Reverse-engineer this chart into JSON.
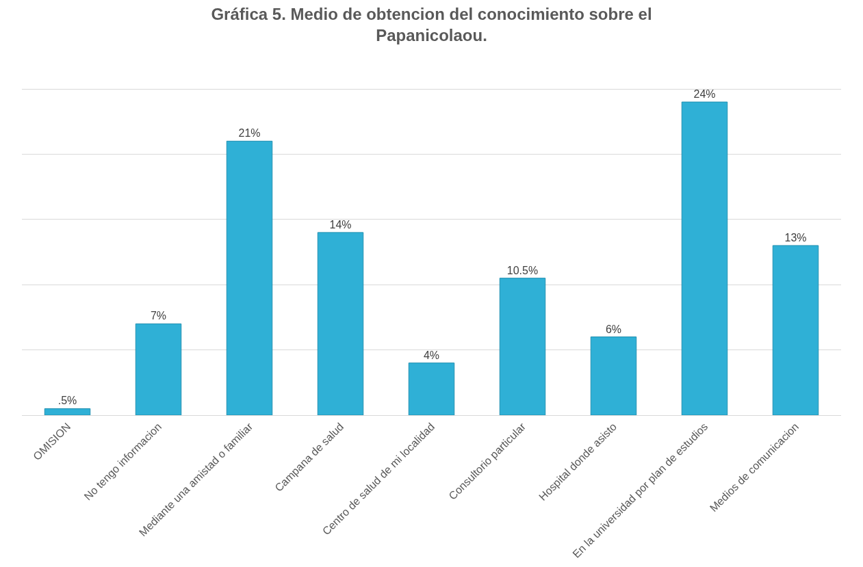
{
  "chart_data": {
    "type": "bar",
    "title": "Gráfica 5. Medio de obtencion del conocimiento sobre el Papanicolaou.",
    "categories": [
      "OMISION",
      "No tengo informacion",
      "Mediante una amistad o familiar",
      "Campana de salud",
      "Centro de salud de mi localidad",
      "Consultorio particular",
      "Hospital donde asisto",
      "En la universidad por plan de estudios",
      "Medios de comunicacion"
    ],
    "values": [
      0.5,
      7,
      21,
      14,
      4,
      10.5,
      6,
      24,
      13
    ],
    "value_labels": [
      ".5%",
      "7%",
      "21%",
      "14%",
      "4%",
      "10.5%",
      "6%",
      "24%",
      "13%"
    ],
    "color": "#2fb0d6",
    "grid": "y",
    "tick_labels": "x"
  }
}
